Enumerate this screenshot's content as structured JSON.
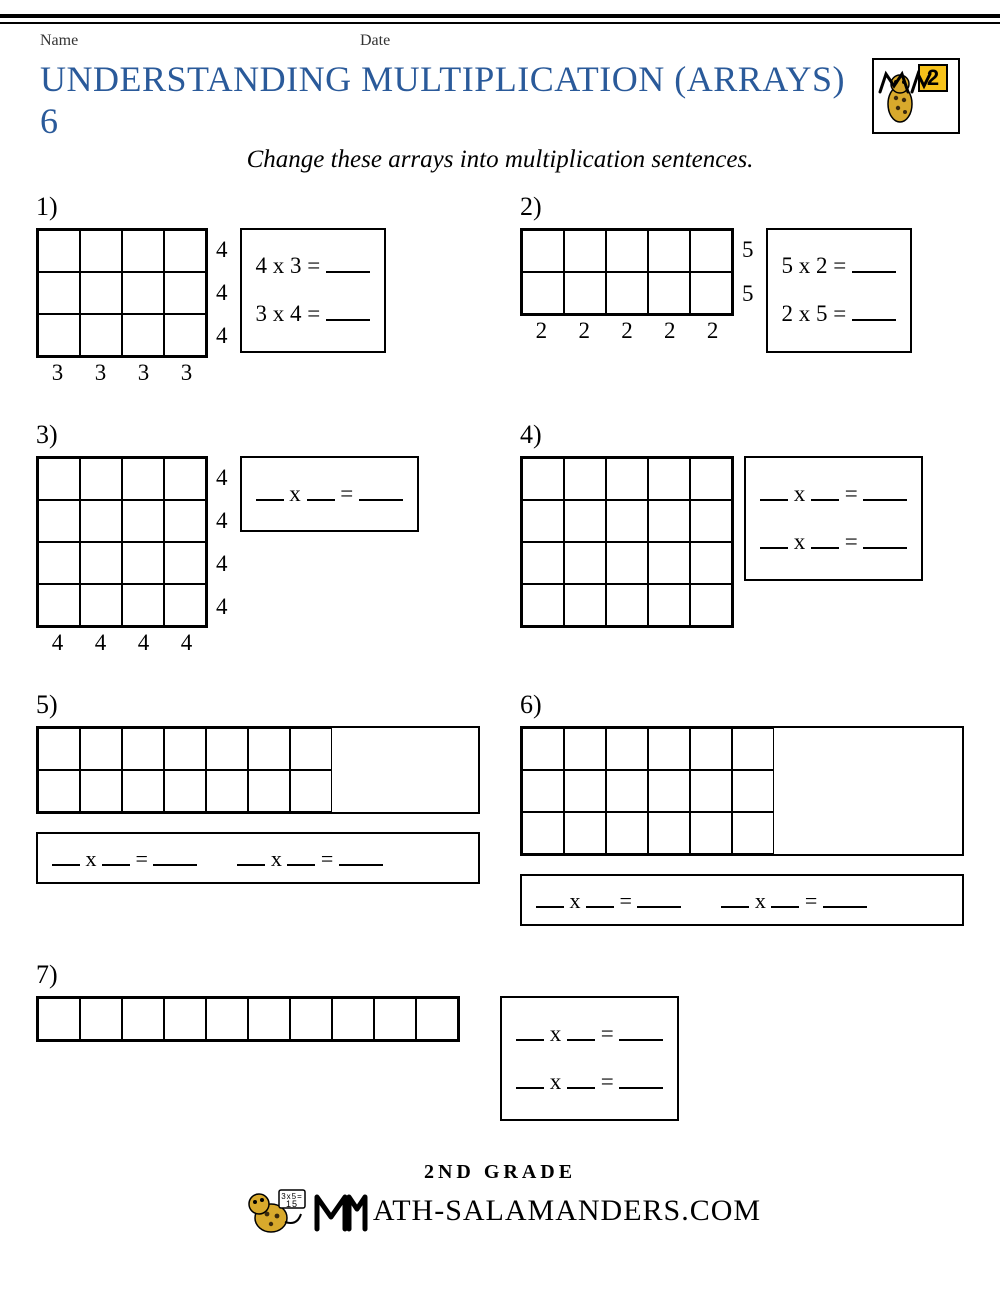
{
  "header": {
    "name_label": "Name",
    "date_label": "Date"
  },
  "title": "UNDERSTANDING MULTIPLICATION (ARRAYS) 6",
  "badge_number": "2",
  "subtitle": "Change these arrays into multiplication sentences.",
  "cell_size": 42,
  "problems": {
    "p1": {
      "label": "1)",
      "rows": 3,
      "cols": 4,
      "row_labels": [
        "4",
        "4",
        "4"
      ],
      "col_labels": [
        "3",
        "3",
        "3",
        "3"
      ],
      "eq1": "4 x 3 =",
      "eq2": "3 x 4 ="
    },
    "p2": {
      "label": "2)",
      "rows": 2,
      "cols": 5,
      "row_labels": [
        "5",
        "5"
      ],
      "col_labels": [
        "2",
        "2",
        "2",
        "2",
        "2"
      ],
      "eq1": "5 x 2 =",
      "eq2": "2 x 5 ="
    },
    "p3": {
      "label": "3)",
      "rows": 4,
      "cols": 4,
      "row_labels": [
        "4",
        "4",
        "4",
        "4"
      ],
      "col_labels": [
        "4",
        "4",
        "4",
        "4"
      ]
    },
    "p4": {
      "label": "4)",
      "rows": 4,
      "cols": 5
    },
    "p5": {
      "label": "5)",
      "rows": 2,
      "cols": 7
    },
    "p6": {
      "label": "6)",
      "rows": 3,
      "cols": 6
    },
    "p7": {
      "label": "7)",
      "rows": 1,
      "cols": 10
    }
  },
  "blank_eq": "__ x __ = ____",
  "footer": {
    "grade": "2ND GRADE",
    "site": "ATH-SALAMANDERS.COM"
  },
  "colors": {
    "title": "#2a5a9a",
    "badge_yellow": "#f6c21a",
    "salamander_body": "#d8a92c",
    "salamander_spots": "#3b2a0e"
  }
}
